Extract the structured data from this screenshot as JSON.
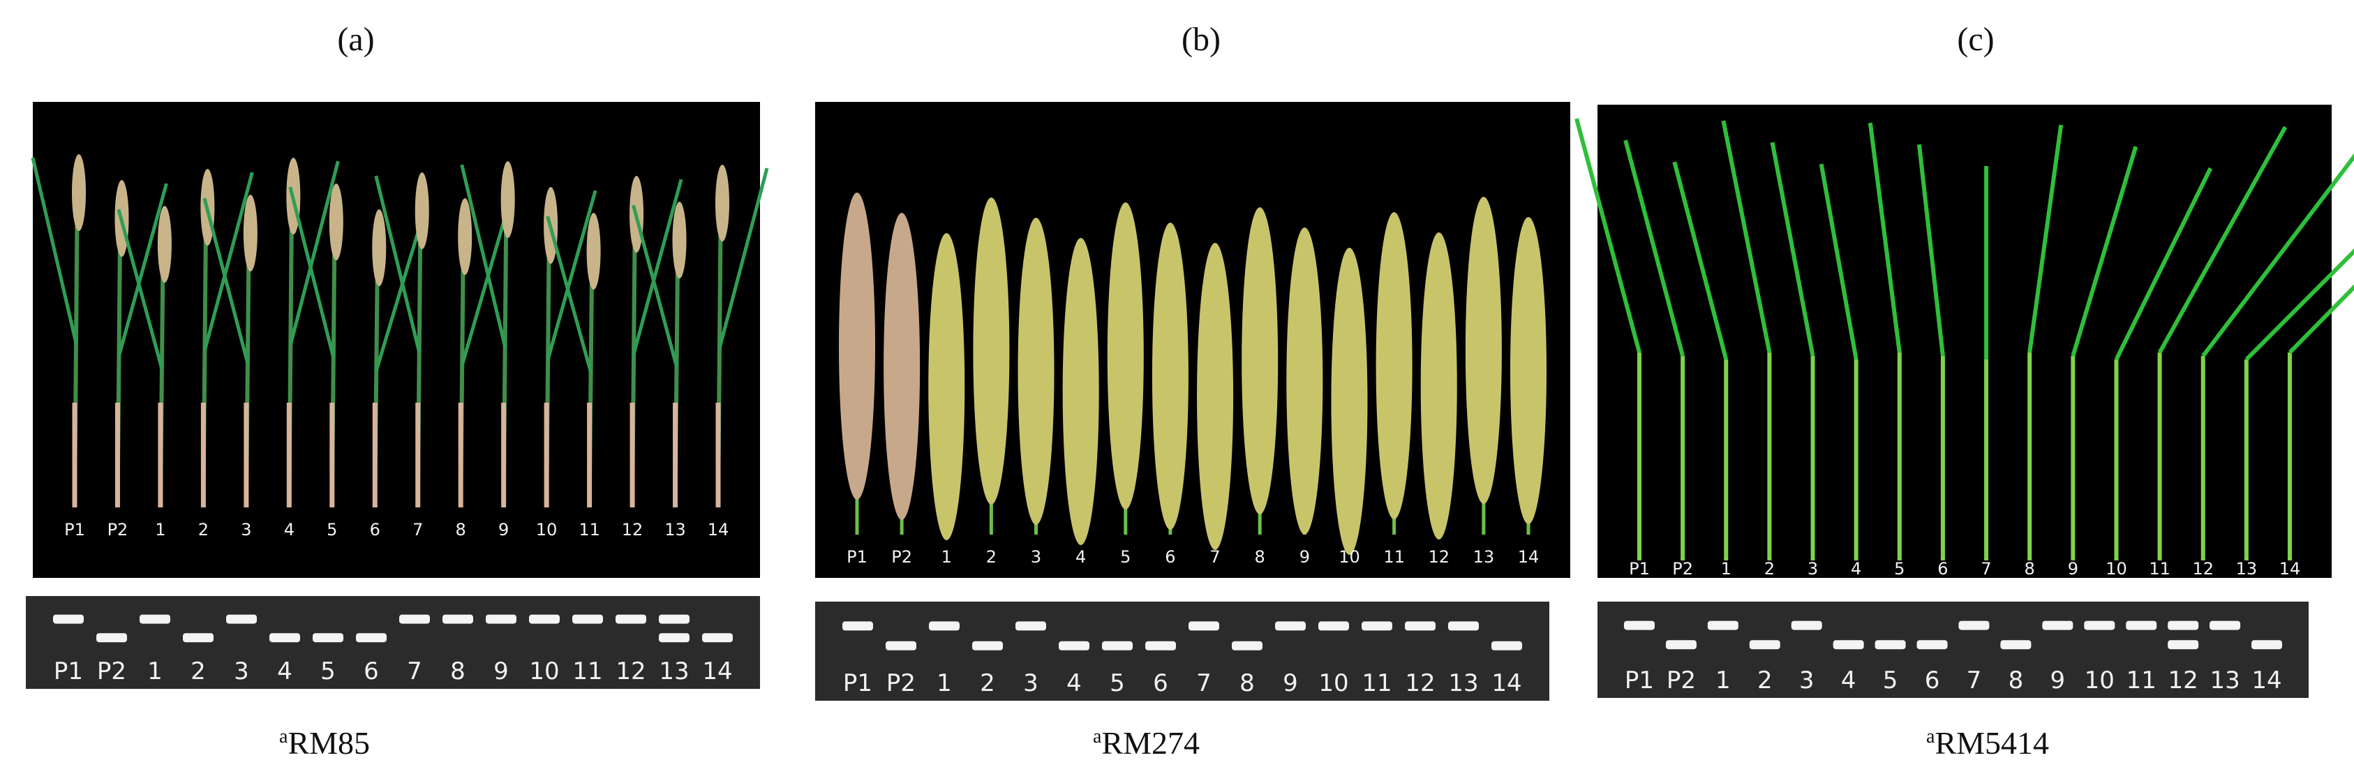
{
  "panels": [
    {
      "label": "(a)",
      "photo_lanes": [
        "P1",
        "P2",
        "1",
        "2",
        "3",
        "4",
        "5",
        "6",
        "7",
        "8",
        "9",
        "10",
        "11",
        "12",
        "13",
        "14"
      ],
      "gel_lanes": [
        "P1",
        "P2",
        "1",
        "2",
        "3",
        "4",
        "5",
        "6",
        "7",
        "8",
        "9",
        "10",
        "11",
        "12",
        "13",
        "14"
      ],
      "caption": {
        "superscript": "a",
        "text": "RM85"
      }
    },
    {
      "label": "(b)",
      "photo_lanes": [
        "P1",
        "P2",
        "1",
        "2",
        "3",
        "4",
        "5",
        "6",
        "7",
        "8",
        "9",
        "10",
        "11",
        "12",
        "13",
        "14"
      ],
      "gel_lanes": [
        "P1",
        "P2",
        "1",
        "2",
        "3",
        "4",
        "5",
        "6",
        "7",
        "8",
        "9",
        "10",
        "11",
        "12",
        "13",
        "14"
      ],
      "caption": {
        "superscript": "a",
        "text": "RM274"
      }
    },
    {
      "label": "(c)",
      "photo_lanes": [
        "P1",
        "P2",
        "1",
        "2",
        "3",
        "4",
        "5",
        "6",
        "7",
        "8",
        "9",
        "10",
        "11",
        "12",
        "13",
        "14"
      ],
      "gel_lanes": [
        "P1",
        "P2",
        "1",
        "2",
        "3",
        "4",
        "5",
        "6",
        "7",
        "8",
        "9",
        "10",
        "11",
        "12",
        "13",
        "14"
      ],
      "caption": {
        "superscript": "a",
        "text": "RM5414"
      }
    }
  ]
}
